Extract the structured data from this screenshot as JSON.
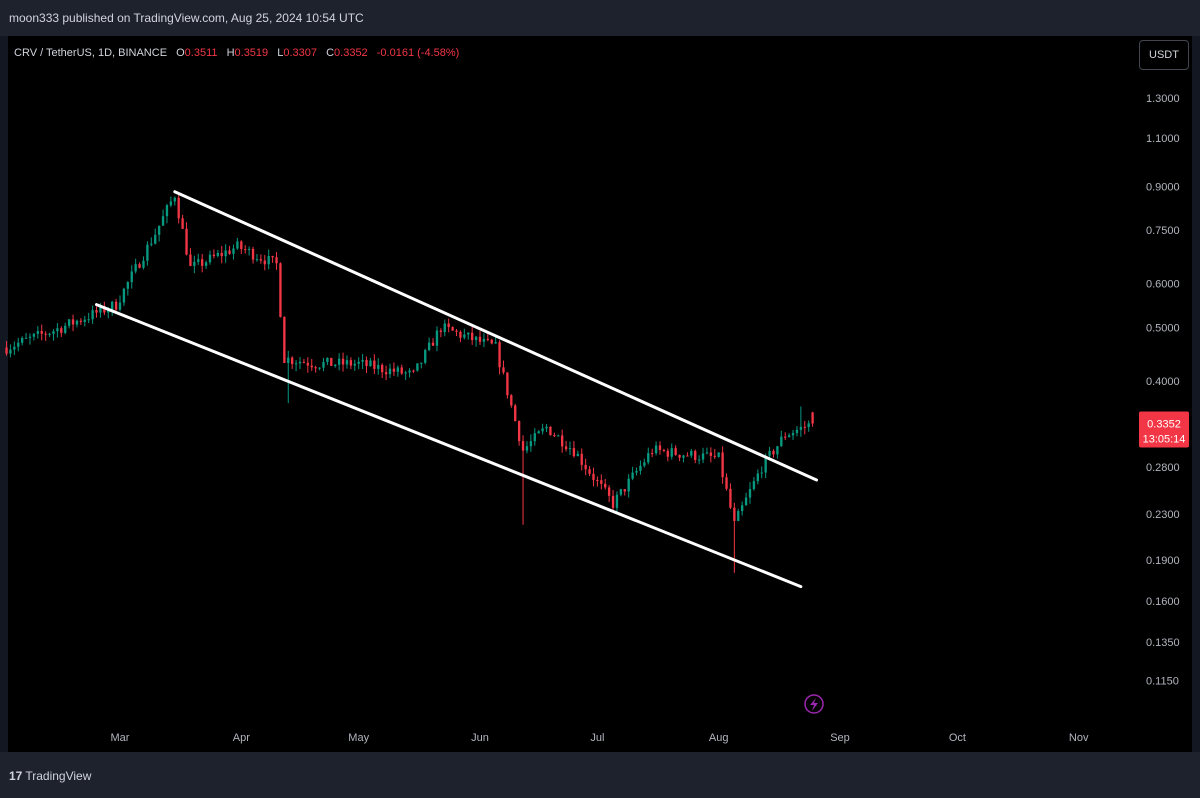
{
  "header": {
    "published": "moon333 published on TradingView.com, Aug 25, 2024 10:54 UTC"
  },
  "legend": {
    "symbol": "CRV / TetherUS, 1D, BINANCE",
    "o_label": "O",
    "o_value": "0.3511",
    "h_label": "H",
    "h_value": "0.3519",
    "l_label": "L",
    "l_value": "0.3307",
    "c_label": "C",
    "c_value": "0.3352",
    "change": "-0.0161 (-4.58%)"
  },
  "currency_button": "USDT",
  "price_label": {
    "value": "0.3352",
    "countdown": "13:05:14",
    "color": "#f23645"
  },
  "footer": {
    "brand": "TradingView"
  },
  "colors": {
    "up": "#089981",
    "down": "#f23645",
    "trendline": "#ffffff",
    "background": "#000000",
    "flash_icon": "#9c27b0"
  },
  "icons": {
    "flash": "lightning-bolt-icon",
    "brand": "tradingview-logo-icon"
  },
  "chart_data": {
    "type": "candlestick",
    "scale": "log",
    "x_ticks": [
      "Mar",
      "Apr",
      "May",
      "Jun",
      "Jul",
      "Aug",
      "Sep",
      "Oct",
      "Nov"
    ],
    "y_ticks": [
      "1.3000",
      "1.1000",
      "0.9000",
      "0.7500",
      "0.6000",
      "0.5000",
      "0.4000",
      "0.2800",
      "0.2300",
      "0.1900",
      "0.1600",
      "0.1350",
      "0.1150"
    ],
    "ylim": [
      0.105,
      1.5
    ],
    "price_anchors": [
      {
        "date": "Feb 1",
        "close": 0.46
      },
      {
        "date": "Feb 15",
        "close": 0.5
      },
      {
        "date": "Feb 29",
        "close": 0.55
      },
      {
        "date": "Mar 10",
        "close": 0.74
      },
      {
        "date": "Mar 15",
        "close": 0.87
      },
      {
        "date": "Mar 19",
        "close": 0.64
      },
      {
        "date": "Mar 31",
        "close": 0.7
      },
      {
        "date": "Apr 10",
        "close": 0.65
      },
      {
        "date": "Apr 12",
        "close": 0.44
      },
      {
        "date": "Apr 20",
        "close": 0.43
      },
      {
        "date": "May 1",
        "close": 0.43
      },
      {
        "date": "May 15",
        "close": 0.41
      },
      {
        "date": "May 22",
        "close": 0.5
      },
      {
        "date": "Jun 5",
        "close": 0.46
      },
      {
        "date": "Jun 12",
        "close": 0.3
      },
      {
        "date": "Jun 18",
        "close": 0.33
      },
      {
        "date": "Jun 25",
        "close": 0.3
      },
      {
        "date": "Jul 5",
        "close": 0.24
      },
      {
        "date": "Jul 15",
        "close": 0.3
      },
      {
        "date": "Aug 1",
        "close": 0.29
      },
      {
        "date": "Aug 5",
        "close": 0.22
      },
      {
        "date": "Aug 12",
        "close": 0.28
      },
      {
        "date": "Aug 18",
        "close": 0.32
      },
      {
        "date": "Aug 25",
        "close": 0.3352
      }
    ],
    "last_candle": {
      "date": "Aug 25",
      "open": 0.3511,
      "high": 0.3519,
      "low": 0.3307,
      "close": 0.3352
    },
    "trendlines": [
      {
        "name": "channel-upper",
        "start": {
          "date": "Mar 15",
          "price": 0.88
        },
        "end": {
          "date": "Aug 26",
          "price": 0.265
        }
      },
      {
        "name": "channel-lower",
        "start": {
          "date": "Feb 24",
          "price": 0.55
        },
        "end": {
          "date": "Aug 22",
          "price": 0.17
        }
      }
    ],
    "grid": false
  }
}
